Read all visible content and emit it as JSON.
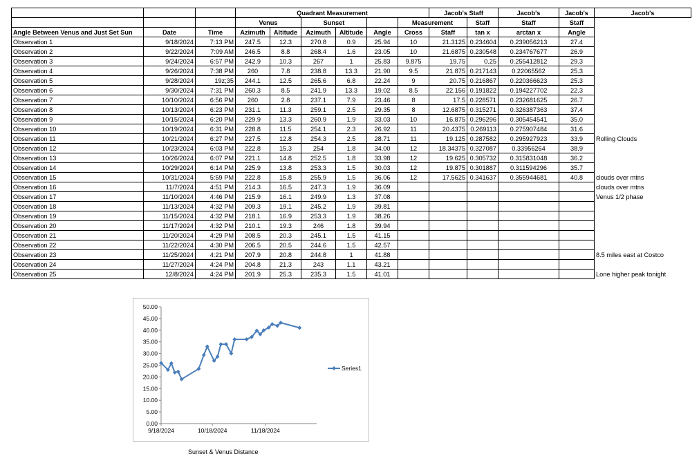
{
  "headers": {
    "quadrant": "Quadrant Measurement",
    "venus": "Venus",
    "sunset": "Sunset",
    "jstaff1a": "Jacob's Staff",
    "jstaff1b": "Measurement",
    "jstaff2a": "Jacob's",
    "jstaff2b": "Staff",
    "jstaff3a": "Jacob's",
    "jstaff3b": "Staff",
    "jstaff4a": "Jacob's",
    "jstaff4b": "Staff",
    "col_label": "Angle Between Venus and Just Set Sun",
    "col_date": "Date",
    "col_time": "Time",
    "col_v_az": "Azimuth",
    "col_v_alt": "Altitude",
    "col_s_az": "Azimuth",
    "col_s_alt": "Altitude",
    "col_angle": "Angle",
    "col_cross": "Cross",
    "col_staff": "Staff",
    "col_tan": "tan x",
    "col_arctan": "arctan x",
    "col_jangle": "Angle"
  },
  "rows": [
    {
      "label": "Observation 1",
      "date": "9/18/2024",
      "time": "7:13 PM",
      "v_az": "247.5",
      "v_alt": "12.3",
      "s_az": "270.8",
      "s_alt": "0.9",
      "angle": "25.94",
      "cross": "10",
      "staff": "21.3125",
      "tan": "0.234604",
      "arctan": "0.239056213",
      "jangle": "27.4",
      "note": ""
    },
    {
      "label": "Observation 2",
      "date": "9/22/2024",
      "time": "7:09 AM",
      "v_az": "246.5",
      "v_alt": "8.8",
      "s_az": "268.4",
      "s_alt": "1.6",
      "angle": "23.05",
      "cross": "10",
      "staff": "21.6875",
      "tan": "0.230548",
      "arctan": "0.234767677",
      "jangle": "26.9",
      "note": ""
    },
    {
      "label": "Observation 3",
      "date": "9/24/2024",
      "time": "6:57 PM",
      "v_az": "242.9",
      "v_alt": "10.3",
      "s_az": "267",
      "s_alt": "1",
      "angle": "25.83",
      "cross": "9.875",
      "staff": "19.75",
      "tan": "0.25",
      "arctan": "0.255412812",
      "jangle": "29.3",
      "note": ""
    },
    {
      "label": "Observation 4",
      "date": "9/26/2024",
      "time": "7:38 PM",
      "v_az": "260",
      "v_alt": "7.8",
      "s_az": "238.8",
      "s_alt": "13.3",
      "angle": "21.90",
      "cross": "9.5",
      "staff": "21.875",
      "tan": "0.217143",
      "arctan": "0.22065562",
      "jangle": "25.3",
      "note": ""
    },
    {
      "label": "Observation 5",
      "date": "9/28/2024",
      "time": "19z;35",
      "v_az": "244.1",
      "v_alt": "12.5",
      "s_az": "265.6",
      "s_alt": "6.8",
      "angle": "22.24",
      "cross": "9",
      "staff": "20.75",
      "tan": "0.216867",
      "arctan": "0.220366623",
      "jangle": "25.3",
      "note": ""
    },
    {
      "label": "Observation 6",
      "date": "9/30/2024",
      "time": "7:31 PM",
      "v_az": "260.3",
      "v_alt": "8.5",
      "s_az": "241.9",
      "s_alt": "13.3",
      "angle": "19.02",
      "cross": "8.5",
      "staff": "22.156",
      "tan": "0.191822",
      "arctan": "0.194227702",
      "jangle": "22.3",
      "note": ""
    },
    {
      "label": "Observation 7",
      "date": "10/10/2024",
      "time": "6:56 PM",
      "v_az": "260",
      "v_alt": "2.8",
      "s_az": "237.1",
      "s_alt": "7.9",
      "angle": "23.46",
      "cross": "8",
      "staff": "17.5",
      "tan": "0.228571",
      "arctan": "0.232681625",
      "jangle": "26.7",
      "note": ""
    },
    {
      "label": "Observation 8",
      "date": "10/13/2024",
      "time": "6:23 PM",
      "v_az": "231.1",
      "v_alt": "11.3",
      "s_az": "259.1",
      "s_alt": "2.5",
      "angle": "29.35",
      "cross": "8",
      "staff": "12.6875",
      "tan": "0.315271",
      "arctan": "0.326387363",
      "jangle": "37.4",
      "note": ""
    },
    {
      "label": "Observation 9",
      "date": "10/15/2024",
      "time": "6:20 PM",
      "v_az": "229.9",
      "v_alt": "13.3",
      "s_az": "260.9",
      "s_alt": "1.9",
      "angle": "33.03",
      "cross": "10",
      "staff": "16.875",
      "tan": "0.296296",
      "arctan": "0.305454541",
      "jangle": "35.0",
      "note": ""
    },
    {
      "label": "Observation 10",
      "date": "10/19/2024",
      "time": "6:31 PM",
      "v_az": "228.8",
      "v_alt": "11.5",
      "s_az": "254.1",
      "s_alt": "2.3",
      "angle": "26.92",
      "cross": "11",
      "staff": "20.4375",
      "tan": "0.269113",
      "arctan": "0.275907484",
      "jangle": "31.6",
      "note": ""
    },
    {
      "label": "Observation 11",
      "date": "10/21/2024",
      "time": "6:27 PM",
      "v_az": "227.5",
      "v_alt": "12.8",
      "s_az": "254.3",
      "s_alt": "2.5",
      "angle": "28.71",
      "cross": "11",
      "staff": "19.125",
      "tan": "0.287582",
      "arctan": "0.295927923",
      "jangle": "33.9",
      "note": "Rolling Clouds"
    },
    {
      "label": "Observation 12",
      "date": "10/23/2024",
      "time": "6:03 PM",
      "v_az": "222.8",
      "v_alt": "15.3",
      "s_az": "254",
      "s_alt": "1.8",
      "angle": "34.00",
      "cross": "12",
      "staff": "18.34375",
      "tan": "0.327087",
      "arctan": "0.33956264",
      "jangle": "38.9",
      "note": ""
    },
    {
      "label": "Observation 13",
      "date": "10/26/2024",
      "time": "6:07 PM",
      "v_az": "221.1",
      "v_alt": "14.8",
      "s_az": "252.5",
      "s_alt": "1.8",
      "angle": "33.98",
      "cross": "12",
      "staff": "19.625",
      "tan": "0.305732",
      "arctan": "0.315831048",
      "jangle": "36.2",
      "note": ""
    },
    {
      "label": "Observation 14",
      "date": "10/29/2024",
      "time": "6:14 PM",
      "v_az": "225.9",
      "v_alt": "13.8",
      "s_az": "253.3",
      "s_alt": "1.5",
      "angle": "30.03",
      "cross": "12",
      "staff": "19.875",
      "tan": "0.301887",
      "arctan": "0.311594296",
      "jangle": "35.7",
      "note": ""
    },
    {
      "label": "Observation 15",
      "date": "10/31/2024",
      "time": "5:59 PM",
      "v_az": "222.8",
      "v_alt": "15.8",
      "s_az": "255.9",
      "s_alt": "1.5",
      "angle": "36.06",
      "cross": "12",
      "staff": "17.5625",
      "tan": "0.341637",
      "arctan": "0.355944681",
      "jangle": "40.8",
      "note": "clouds over mtns"
    },
    {
      "label": "Observation 16",
      "date": "11/7/2024",
      "time": "4:51 PM",
      "v_az": "214.3",
      "v_alt": "16.5",
      "s_az": "247.3",
      "s_alt": "1.9",
      "angle": "36.09",
      "cross": "",
      "staff": "",
      "tan": "",
      "arctan": "",
      "jangle": "",
      "note": "clouds over mtns"
    },
    {
      "label": "Observation 17",
      "date": "11/10/2024",
      "time": "4:46 PM",
      "v_az": "215.9",
      "v_alt": "16.1",
      "s_az": "249.9",
      "s_alt": "1.3",
      "angle": "37.08",
      "cross": "",
      "staff": "",
      "tan": "",
      "arctan": "",
      "jangle": "",
      "note": "Venus 1/2 phase"
    },
    {
      "label": "Observation 18",
      "date": "11/13/2024",
      "time": "4:32 PM",
      "v_az": "209.3",
      "v_alt": "19.1",
      "s_az": "245.2",
      "s_alt": "1.9",
      "angle": "39.81",
      "cross": "",
      "staff": "",
      "tan": "",
      "arctan": "",
      "jangle": "",
      "note": ""
    },
    {
      "label": "Observation 19",
      "date": "11/15/2024",
      "time": "4:32 PM",
      "v_az": "218.1",
      "v_alt": "16.9",
      "s_az": "253.3",
      "s_alt": "1.9",
      "angle": "38.26",
      "cross": "",
      "staff": "",
      "tan": "",
      "arctan": "",
      "jangle": "",
      "note": ""
    },
    {
      "label": "Observation 20",
      "date": "11/17/2024",
      "time": "4:32 PM",
      "v_az": "210.1",
      "v_alt": "19.3",
      "s_az": "246",
      "s_alt": "1.8",
      "angle": "39.94",
      "cross": "",
      "staff": "",
      "tan": "",
      "arctan": "",
      "jangle": "",
      "note": ""
    },
    {
      "label": "Observation 21",
      "date": "11/20/2024",
      "time": "4:29 PM",
      "v_az": "208.5",
      "v_alt": "20.3",
      "s_az": "245.1",
      "s_alt": "1.5",
      "angle": "41.15",
      "cross": "",
      "staff": "",
      "tan": "",
      "arctan": "",
      "jangle": "",
      "note": ""
    },
    {
      "label": "Observation 22",
      "date": "11/22/2024",
      "time": "4:30 PM",
      "v_az": "206.5",
      "v_alt": "20.5",
      "s_az": "244.6",
      "s_alt": "1.5",
      "angle": "42.57",
      "cross": "",
      "staff": "",
      "tan": "",
      "arctan": "",
      "jangle": "",
      "note": ""
    },
    {
      "label": "Observation 23",
      "date": "11/25/2024",
      "time": "4:21 PM",
      "v_az": "207.9",
      "v_alt": "20.8",
      "s_az": "244.8",
      "s_alt": "1",
      "angle": "41.88",
      "cross": "",
      "staff": "",
      "tan": "",
      "arctan": "",
      "jangle": "",
      "note": "8.5 miles east at Costco"
    },
    {
      "label": "Observation 24",
      "date": "11/27/2024",
      "time": "4:24 PM",
      "v_az": "204.8",
      "v_alt": "21.3",
      "s_az": "243",
      "s_alt": "1.1",
      "angle": "43.21",
      "cross": "",
      "staff": "",
      "tan": "",
      "arctan": "",
      "jangle": "",
      "note": ""
    },
    {
      "label": "Observation 25",
      "date": "12/8/2024",
      "time": "4:24 PM",
      "v_az": "201.9",
      "v_alt": "25.3",
      "s_az": "235.3",
      "s_alt": "1.5",
      "angle": "41.01",
      "cross": "",
      "staff": "",
      "tan": "",
      "arctan": "",
      "jangle": "",
      "note": "Lone higher peak tonight"
    }
  ],
  "chart_data": {
    "type": "line",
    "title": "",
    "xlabel": "Sunset & Venus Distance",
    "ylabel": "",
    "ylim": [
      0,
      50
    ],
    "y_ticks": [
      "0.00",
      "5.00",
      "10.00",
      "15.00",
      "20.00",
      "25.00",
      "30.00",
      "35.00",
      "40.00",
      "45.00",
      "50.00"
    ],
    "x_ticks": [
      {
        "date": "2024-09-18",
        "label": "9/18/2024"
      },
      {
        "date": "2024-10-18",
        "label": "10/18/2024"
      },
      {
        "date": "2024-11-18",
        "label": "11/18/2024"
      }
    ],
    "xlim": [
      "2024-09-18",
      "2024-12-18"
    ],
    "grid": false,
    "legend": "right",
    "series_color": "#4a7ebb",
    "series": [
      {
        "name": "Series1",
        "x": [
          "2024-09-18",
          "2024-09-22",
          "2024-09-24",
          "2024-09-26",
          "2024-09-28",
          "2024-09-30",
          "2024-10-10",
          "2024-10-13",
          "2024-10-15",
          "2024-10-19",
          "2024-10-21",
          "2024-10-23",
          "2024-10-26",
          "2024-10-29",
          "2024-10-31",
          "2024-11-07",
          "2024-11-10",
          "2024-11-13",
          "2024-11-15",
          "2024-11-17",
          "2024-11-20",
          "2024-11-22",
          "2024-11-25",
          "2024-11-27",
          "2024-12-08"
        ],
        "values": [
          25.94,
          23.05,
          25.83,
          21.9,
          22.24,
          19.02,
          23.46,
          29.35,
          33.03,
          26.92,
          28.71,
          34.0,
          33.98,
          30.03,
          36.06,
          36.09,
          37.08,
          39.81,
          38.26,
          39.94,
          41.15,
          42.57,
          41.88,
          43.21,
          41.01
        ]
      }
    ]
  }
}
